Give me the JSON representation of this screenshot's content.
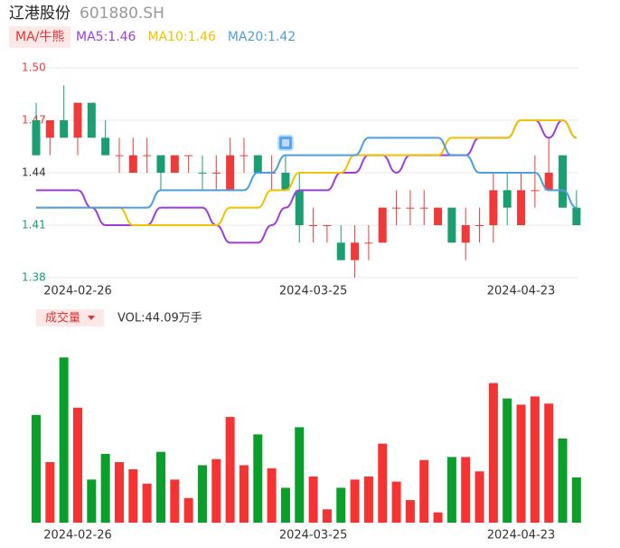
{
  "header": {
    "title": "辽港股份",
    "code": "601880.SH"
  },
  "chart_data": [
    {
      "type": "candlestick",
      "tag": "MA/牛熊",
      "categories": [
        null,
        null,
        null,
        "2024-02-26",
        null,
        null,
        null,
        null,
        null,
        null,
        null,
        null,
        null,
        null,
        null,
        null,
        null,
        null,
        null,
        null,
        "2024-03-25",
        null,
        null,
        null,
        null,
        null,
        null,
        null,
        null,
        null,
        null,
        null,
        null,
        null,
        null,
        "2024-04-23",
        null,
        null,
        null,
        null
      ],
      "open": [
        1.47,
        1.46,
        1.47,
        1.46,
        1.48,
        1.46,
        1.45,
        1.44,
        1.45,
        1.45,
        1.44,
        1.45,
        1.44,
        1.44,
        1.43,
        1.45,
        1.45,
        1.44,
        1.44,
        1.43,
        1.41,
        1.41,
        1.4,
        1.39,
        1.4,
        1.4,
        1.42,
        1.42,
        1.42,
        1.41,
        1.42,
        1.4,
        1.41,
        1.41,
        1.43,
        1.41,
        1.43,
        1.43,
        1.45,
        1.42
      ],
      "close": [
        1.45,
        1.47,
        1.46,
        1.48,
        1.46,
        1.45,
        1.45,
        1.45,
        1.45,
        1.44,
        1.45,
        1.45,
        1.44,
        1.44,
        1.45,
        1.45,
        1.44,
        1.44,
        1.43,
        1.41,
        1.41,
        1.41,
        1.39,
        1.4,
        1.4,
        1.42,
        1.42,
        1.42,
        1.42,
        1.42,
        1.4,
        1.41,
        1.41,
        1.43,
        1.42,
        1.43,
        1.43,
        1.44,
        1.42,
        1.41
      ],
      "high": [
        1.48,
        1.47,
        1.49,
        1.48,
        1.48,
        1.47,
        1.46,
        1.46,
        1.46,
        1.45,
        1.45,
        1.45,
        1.45,
        1.45,
        1.46,
        1.46,
        1.45,
        1.45,
        1.45,
        1.44,
        1.42,
        1.41,
        1.41,
        1.41,
        1.41,
        1.42,
        1.43,
        1.43,
        1.43,
        1.42,
        1.42,
        1.42,
        1.42,
        1.44,
        1.44,
        1.44,
        1.45,
        1.46,
        1.45,
        1.43
      ],
      "low": [
        1.45,
        1.45,
        1.46,
        1.45,
        1.46,
        1.45,
        1.44,
        1.44,
        1.44,
        1.43,
        1.44,
        1.44,
        1.43,
        1.43,
        1.43,
        1.44,
        1.44,
        1.43,
        1.43,
        1.4,
        1.4,
        1.4,
        1.39,
        1.38,
        1.39,
        1.4,
        1.41,
        1.41,
        1.41,
        1.41,
        1.4,
        1.39,
        1.4,
        1.4,
        1.41,
        1.41,
        1.42,
        1.43,
        1.42,
        1.41
      ],
      "colors": [
        "#1a9e72",
        "#f03a3a",
        "#1a9e72",
        "#f03a3a",
        "#1a9e72",
        "#1a9e72",
        "#f03a3a",
        "#f03a3a",
        "#f03a3a",
        "#1a9e72",
        "#f03a3a",
        "#f03a3a",
        "#1a9e72",
        "#f03a3a",
        "#f03a3a",
        "#f03a3a",
        "#1a9e72",
        "#f03a3a",
        "#1a9e72",
        "#1a9e72",
        "#f03a3a",
        "#f03a3a",
        "#1a9e72",
        "#f03a3a",
        "#f03a3a",
        "#f03a3a",
        "#f03a3a",
        "#f03a3a",
        "#f03a3a",
        "#f03a3a",
        "#1a9e72",
        "#f03a3a",
        "#f03a3a",
        "#f03a3a",
        "#1a9e72",
        "#f03a3a",
        "#f03a3a",
        "#f03a3a",
        "#1a9e72",
        "#1a9e72"
      ],
      "ylim": [
        1.38,
        1.5
      ],
      "yticks": [
        {
          "value": 1.5,
          "label": "1.50"
        },
        1.47,
        1.44,
        1.41,
        1.38
      ],
      "ytick_colors": [
        "#f03a3a",
        "#f03a3a",
        "#333333",
        "#1a9e72",
        "#1a9e72"
      ],
      "grid": true,
      "series": [
        {
          "name": "MA5:1.46",
          "color": "#9b3ee0",
          "values": [
            1.43,
            1.43,
            1.43,
            1.43,
            1.42,
            1.41,
            1.41,
            1.41,
            1.41,
            1.42,
            1.42,
            1.42,
            1.42,
            1.41,
            1.4,
            1.4,
            1.4,
            1.41,
            1.42,
            1.43,
            1.43,
            1.43,
            1.44,
            1.44,
            1.45,
            1.45,
            1.44,
            1.45,
            1.45,
            1.45,
            1.45,
            1.45,
            1.46,
            1.46,
            1.46,
            1.47,
            1.47,
            1.46,
            1.47,
            1.46
          ]
        },
        {
          "name": "MA10:1.46",
          "color": "#f2c200",
          "values": [
            1.42,
            1.42,
            1.42,
            1.42,
            1.42,
            1.42,
            1.42,
            1.41,
            1.41,
            1.41,
            1.41,
            1.41,
            1.41,
            1.41,
            1.42,
            1.42,
            1.42,
            1.43,
            1.43,
            1.44,
            1.44,
            1.44,
            1.44,
            1.45,
            1.45,
            1.45,
            1.45,
            1.45,
            1.45,
            1.45,
            1.46,
            1.46,
            1.46,
            1.46,
            1.46,
            1.47,
            1.47,
            1.47,
            1.47,
            1.46
          ]
        },
        {
          "name": "MA20:1.42",
          "color": "#4d9de0",
          "values": [
            1.42,
            1.42,
            1.42,
            1.42,
            1.42,
            1.42,
            1.42,
            1.42,
            1.42,
            1.43,
            1.43,
            1.43,
            1.43,
            1.43,
            1.43,
            1.43,
            1.44,
            1.44,
            1.45,
            1.45,
            1.45,
            1.45,
            1.45,
            1.45,
            1.46,
            1.46,
            1.46,
            1.46,
            1.46,
            1.46,
            1.45,
            1.45,
            1.44,
            1.44,
            1.44,
            1.44,
            1.44,
            1.43,
            1.43,
            1.42
          ]
        }
      ]
    },
    {
      "type": "bar",
      "tag": "成交量",
      "label": "VOL:44.09万手",
      "categories": [
        null,
        null,
        null,
        "2024-02-26",
        null,
        null,
        null,
        null,
        null,
        null,
        null,
        null,
        null,
        null,
        null,
        null,
        null,
        null,
        null,
        null,
        "2024-03-25",
        null,
        null,
        null,
        null,
        null,
        null,
        null,
        null,
        null,
        null,
        null,
        null,
        null,
        null,
        "2024-04-23",
        null,
        null,
        null,
        null
      ],
      "values": [
        105,
        59,
        161,
        112,
        42,
        67,
        59,
        52,
        38,
        69,
        42,
        24,
        56,
        62,
        103,
        56,
        86,
        53,
        34,
        93,
        45,
        13,
        34,
        42,
        45,
        77,
        40,
        22,
        61,
        10,
        64,
        64,
        50,
        136,
        121,
        115,
        123,
        116,
        82,
        44.09
      ],
      "colors": [
        "#0a9e2a",
        "#f53333",
        "#0a9e2a",
        "#f53333",
        "#0a9e2a",
        "#0a9e2a",
        "#f53333",
        "#f53333",
        "#f53333",
        "#0a9e2a",
        "#f53333",
        "#f53333",
        "#0a9e2a",
        "#f53333",
        "#f53333",
        "#f53333",
        "#0a9e2a",
        "#f53333",
        "#0a9e2a",
        "#0a9e2a",
        "#f53333",
        "#f53333",
        "#0a9e2a",
        "#f53333",
        "#f53333",
        "#f53333",
        "#f53333",
        "#f53333",
        "#f53333",
        "#f53333",
        "#0a9e2a",
        "#f53333",
        "#f53333",
        "#f53333",
        "#0a9e2a",
        "#f53333",
        "#f53333",
        "#f53333",
        "#0a9e2a",
        "#0a9e2a"
      ],
      "ylim": [
        0,
        200
      ]
    }
  ]
}
